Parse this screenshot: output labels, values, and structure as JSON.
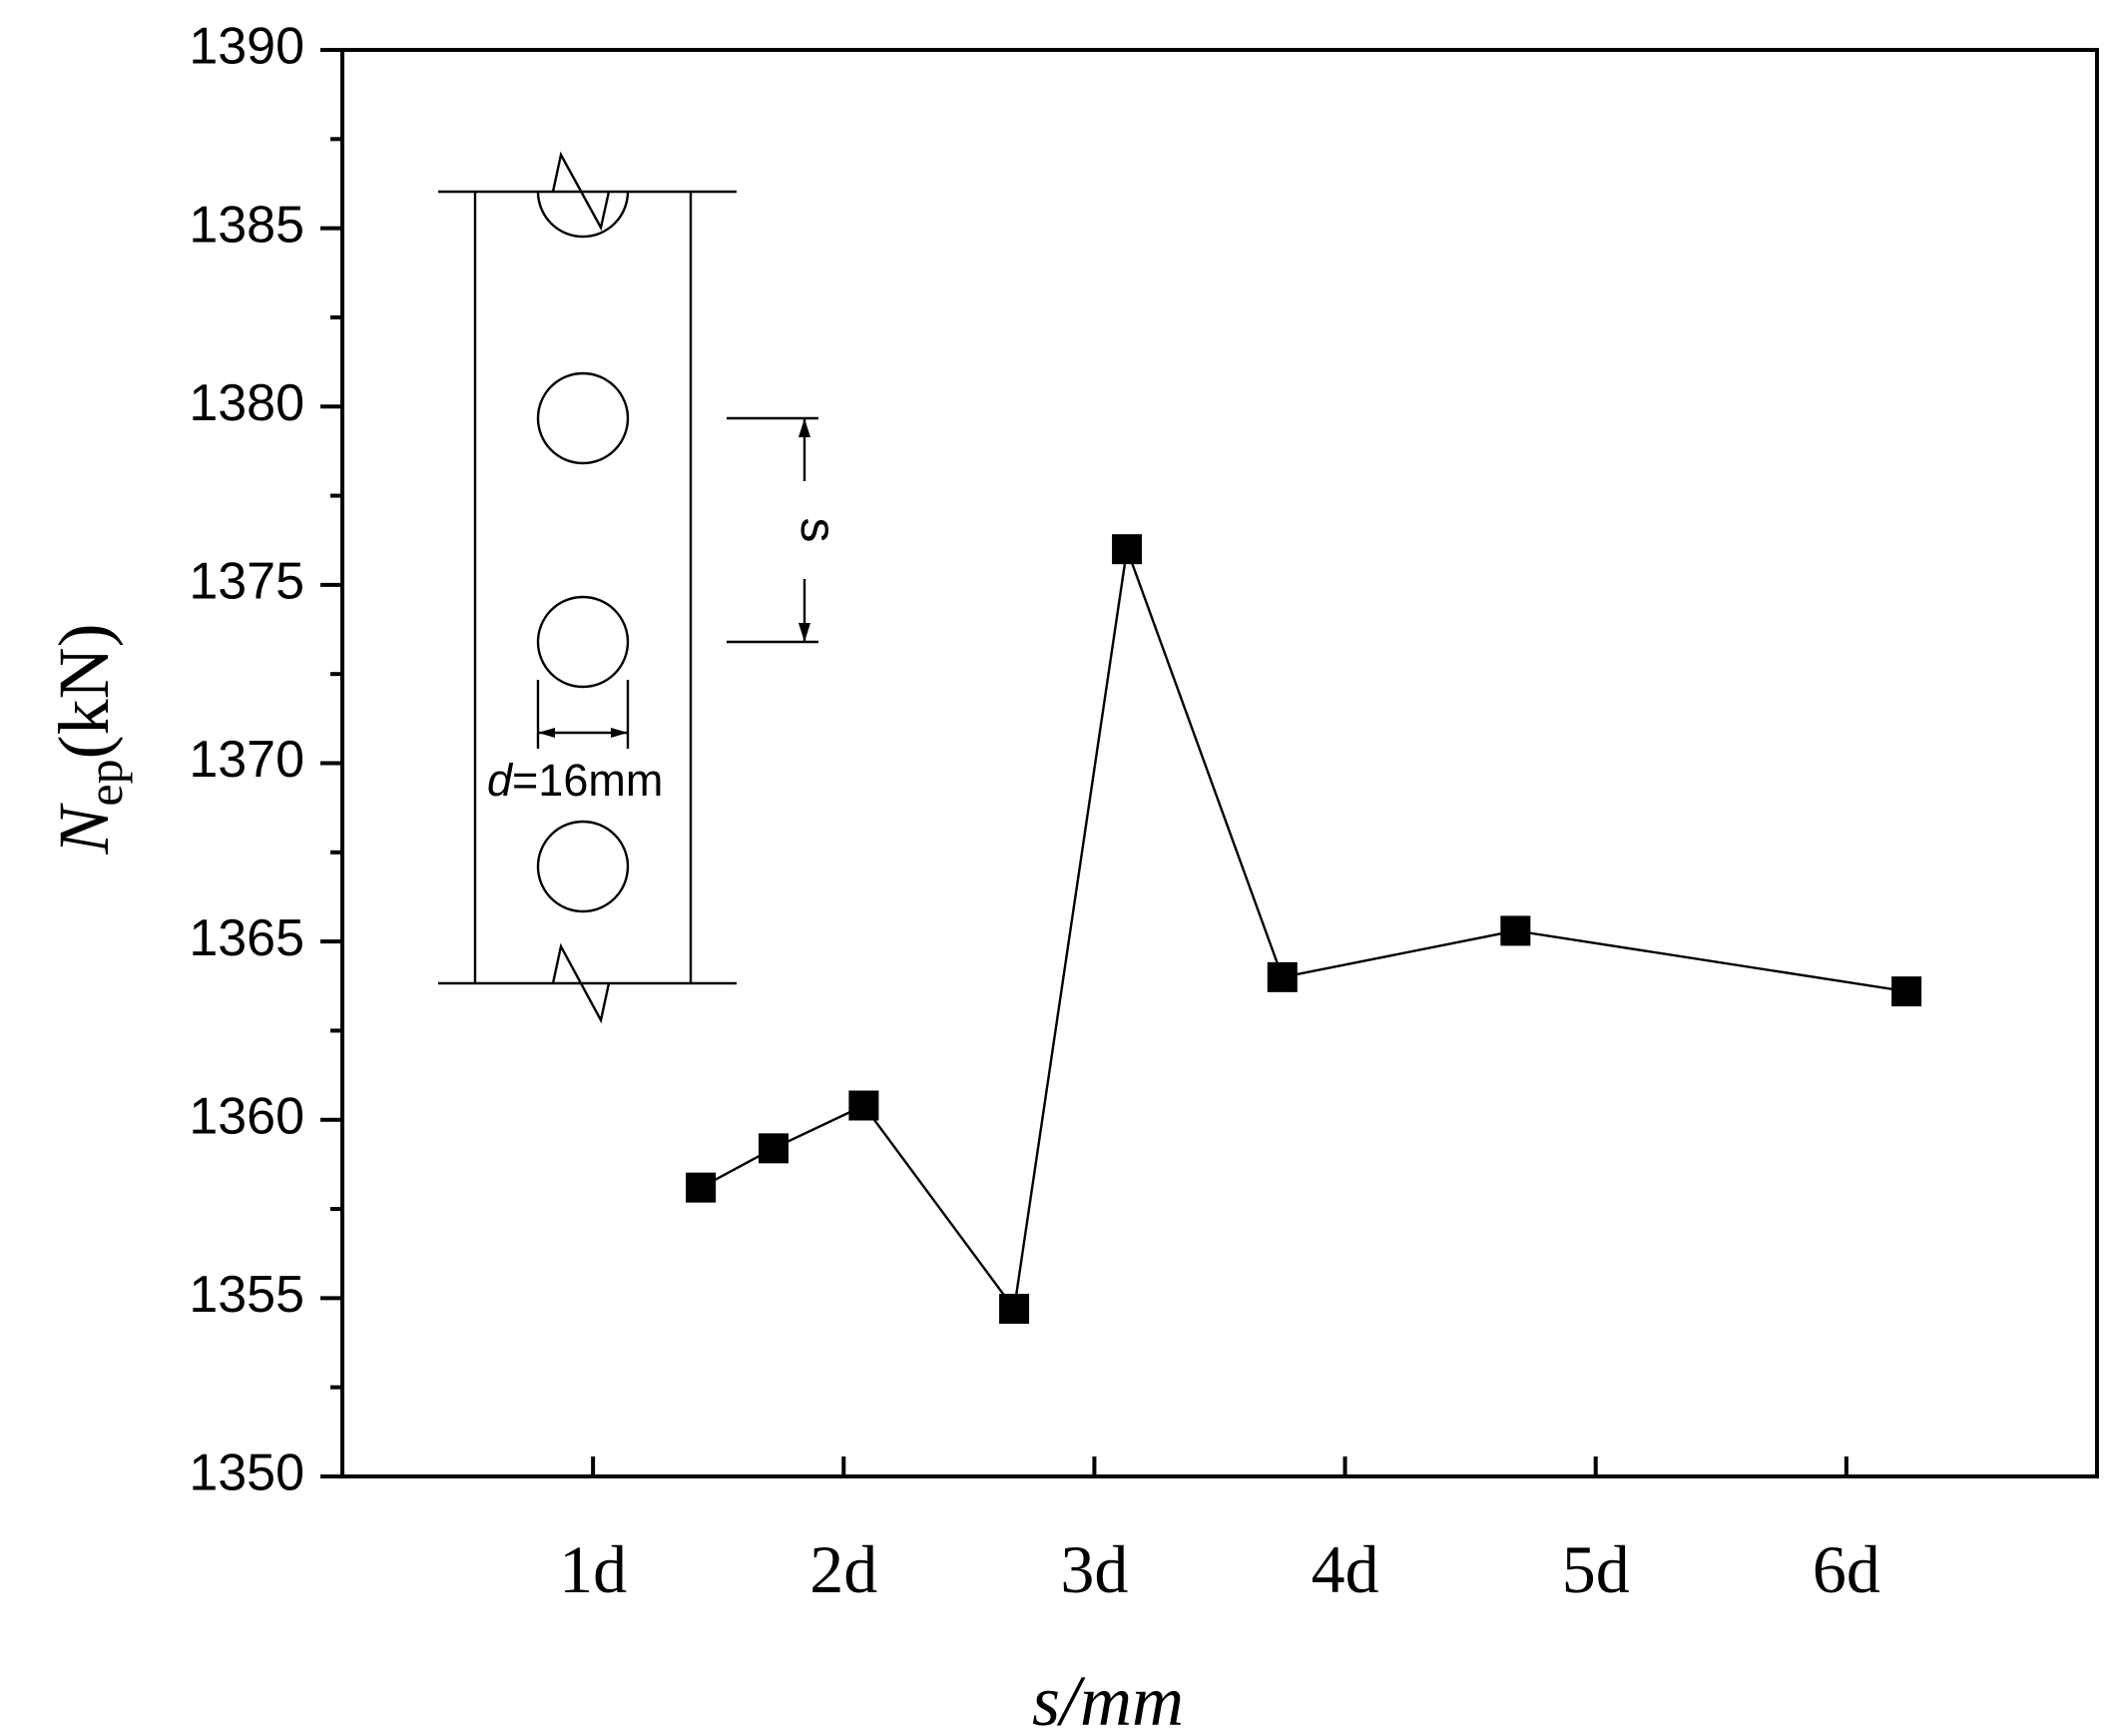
{
  "chart_data": {
    "type": "line",
    "xlabel": "s/mm",
    "ylabel": {
      "main": "N",
      "subscript": "ep",
      "unit": "(kN)"
    },
    "ylim": [
      1350,
      1390
    ],
    "y_ticks": [
      "1350",
      "1355",
      "1360",
      "1365",
      "1370",
      "1375",
      "1380",
      "1385",
      "1390"
    ],
    "x_categories": [
      "1d",
      "2d",
      "3d",
      "4d",
      "5d",
      "6d"
    ],
    "xlim": [
      0.0,
      7.0
    ],
    "grid": false,
    "legend": "none",
    "marker": "square",
    "line_color": "#000000",
    "series": [
      {
        "x": [
          1.43,
          1.72,
          2.08,
          2.68,
          3.13,
          3.75,
          4.68,
          6.24
        ],
        "y": [
          1358.1,
          1359.2,
          1360.4,
          1354.7,
          1376.0,
          1364.0,
          1365.3,
          1363.6
        ]
      }
    ],
    "annotations": {
      "inset_diagram_labels": {
        "spacing_label": "s",
        "diameter_italic": "d",
        "diameter_rest": "=16mm"
      }
    }
  }
}
